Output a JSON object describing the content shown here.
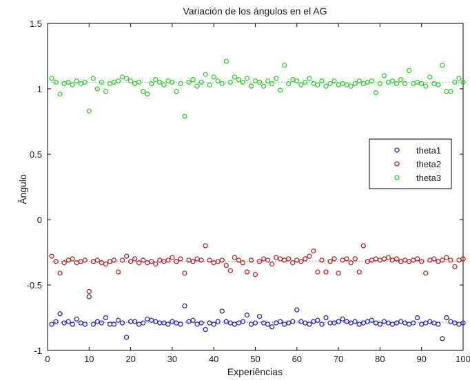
{
  "chart_data": {
    "type": "scatter",
    "title": "Variación de los ángulos en el AG",
    "xlabel": "Experiências",
    "ylabel": "Ângulo",
    "xlim": [
      0,
      100
    ],
    "ylim": [
      -1,
      1.5
    ],
    "xticks": [
      "0",
      "10",
      "20",
      "30",
      "40",
      "50",
      "60",
      "70",
      "80",
      "90",
      "100"
    ],
    "yticks": [
      "-1",
      "-0.5",
      "0",
      "0.5",
      "1",
      "1.5"
    ],
    "grid": false,
    "legend_position": "right",
    "series": [
      {
        "name": "theta1",
        "color": "#2a2aa8",
        "mean_line": -0.785,
        "values": [
          -0.8,
          -0.78,
          -0.72,
          -0.79,
          -0.78,
          -0.8,
          -0.76,
          -0.79,
          -0.8,
          -0.59,
          -0.8,
          -0.78,
          -0.79,
          -0.75,
          -0.8,
          -0.8,
          -0.77,
          -0.79,
          -0.9,
          -0.78,
          -0.78,
          -0.8,
          -0.79,
          -0.76,
          -0.77,
          -0.78,
          -0.79,
          -0.79,
          -0.8,
          -0.78,
          -0.79,
          -0.8,
          -0.66,
          -0.78,
          -0.77,
          -0.8,
          -0.79,
          -0.84,
          -0.79,
          -0.8,
          -0.78,
          -0.7,
          -0.78,
          -0.79,
          -0.8,
          -0.79,
          -0.78,
          -0.73,
          -0.8,
          -0.79,
          -0.74,
          -0.79,
          -0.8,
          -0.82,
          -0.79,
          -0.78,
          -0.8,
          -0.79,
          -0.78,
          -0.69,
          -0.78,
          -0.79,
          -0.8,
          -0.78,
          -0.77,
          -0.8,
          -0.75,
          -0.79,
          -0.79,
          -0.78,
          -0.76,
          -0.78,
          -0.79,
          -0.78,
          -0.8,
          -0.79,
          -0.78,
          -0.77,
          -0.79,
          -0.8,
          -0.78,
          -0.79,
          -0.8,
          -0.79,
          -0.78,
          -0.79,
          -0.8,
          -0.79,
          -0.75,
          -0.8,
          -0.79,
          -0.78,
          -0.79,
          -0.8,
          -0.91,
          -0.75,
          -0.78,
          -0.79,
          -0.8,
          -0.79
        ]
      },
      {
        "name": "theta2",
        "color": "#b02a2a",
        "mean_line": -0.32,
        "values": [
          -0.28,
          -0.32,
          -0.41,
          -0.33,
          -0.31,
          -0.3,
          -0.33,
          -0.32,
          -0.31,
          -0.55,
          -0.32,
          -0.31,
          -0.33,
          -0.34,
          -0.32,
          -0.31,
          -0.4,
          -0.31,
          -0.28,
          -0.32,
          -0.3,
          -0.33,
          -0.31,
          -0.33,
          -0.32,
          -0.34,
          -0.31,
          -0.32,
          -0.31,
          -0.29,
          -0.32,
          -0.3,
          -0.41,
          -0.31,
          -0.32,
          -0.3,
          -0.31,
          -0.2,
          -0.31,
          -0.33,
          -0.32,
          -0.31,
          -0.35,
          -0.39,
          -0.29,
          -0.31,
          -0.33,
          -0.4,
          -0.31,
          -0.42,
          -0.32,
          -0.3,
          -0.31,
          -0.34,
          -0.29,
          -0.3,
          -0.31,
          -0.3,
          -0.33,
          -0.31,
          -0.32,
          -0.3,
          -0.28,
          -0.24,
          -0.4,
          -0.31,
          -0.4,
          -0.32,
          -0.3,
          -0.41,
          -0.31,
          -0.3,
          -0.33,
          -0.3,
          -0.4,
          -0.2,
          -0.32,
          -0.31,
          -0.3,
          -0.31,
          -0.3,
          -0.29,
          -0.31,
          -0.3,
          -0.32,
          -0.31,
          -0.32,
          -0.31,
          -0.3,
          -0.32,
          -0.41,
          -0.31,
          -0.3,
          -0.32,
          -0.31,
          -0.29,
          -0.31,
          -0.36,
          -0.31,
          -0.3
        ]
      },
      {
        "name": "theta3",
        "color": "#33cc33",
        "mean_line": 1.05,
        "values": [
          1.08,
          1.05,
          0.96,
          1.04,
          1.05,
          1.03,
          1.06,
          1.04,
          1.05,
          0.83,
          1.08,
          1.0,
          1.05,
          0.98,
          1.04,
          1.05,
          1.06,
          1.09,
          1.08,
          1.06,
          1.04,
          1.05,
          0.98,
          0.96,
          1.04,
          1.07,
          1.05,
          1.03,
          1.06,
          1.05,
          0.98,
          1.04,
          0.79,
          1.05,
          1.07,
          1.02,
          1.05,
          1.11,
          1.03,
          1.09,
          1.06,
          1.04,
          1.21,
          1.05,
          1.09,
          1.07,
          1.05,
          1.08,
          1.02,
          1.06,
          1.05,
          1.02,
          1.06,
          1.04,
          1.08,
          0.99,
          1.18,
          1.04,
          1.07,
          1.06,
          1.03,
          1.05,
          1.08,
          1.04,
          1.03,
          1.06,
          1.02,
          1.04,
          1.06,
          1.03,
          1.04,
          1.03,
          1.02,
          1.04,
          1.06,
          1.04,
          1.05,
          1.06,
          0.97,
          1.04,
          1.1,
          1.05,
          1.06,
          1.04,
          1.07,
          1.04,
          1.14,
          1.04,
          1.05,
          1.04,
          1.02,
          1.09,
          1.04,
          1.03,
          1.18,
          0.98,
          0.98,
          1.05,
          1.08,
          1.05
        ]
      }
    ]
  }
}
